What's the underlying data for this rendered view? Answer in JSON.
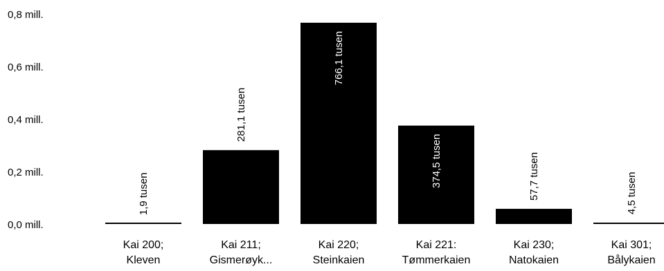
{
  "chart_data": {
    "type": "bar",
    "categories": [
      [
        "Kai 200;",
        "Kleven"
      ],
      [
        "Kai 211;",
        "Gismerøyk..."
      ],
      [
        "Kai 220;",
        "Steinkaien"
      ],
      [
        "Kai 221:",
        "Tømmerkaien"
      ],
      [
        "Kai 230;",
        "Natokaien"
      ],
      [
        "Kai 301;",
        "Bålykaien"
      ]
    ],
    "values": [
      1.9,
      281.1,
      766.1,
      374.5,
      57.7,
      4.5
    ],
    "data_labels": [
      "1,9 tusen",
      "281,1 tusen",
      "766,1 tusen",
      "374,5 tusen",
      "57,7 tusen",
      "4,5 tusen"
    ],
    "y_ticks": [
      0,
      200,
      400,
      600,
      800
    ],
    "y_tick_labels": [
      "0,0 mill.",
      "0,2 mill.",
      "0,4 mill.",
      "0,6 mill.",
      "0,8 mill."
    ],
    "ylim": [
      0,
      800
    ],
    "title": "",
    "xlabel": "",
    "ylabel": "",
    "grid": false,
    "bar_color": "#000000",
    "label_color_outside": "#000000",
    "label_color_inside": "#ffffff"
  }
}
